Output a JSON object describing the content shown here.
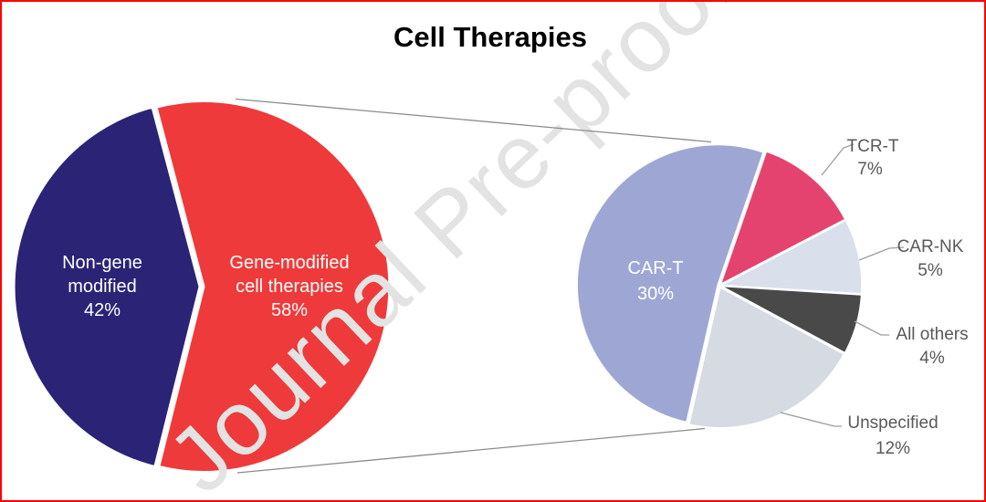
{
  "figure": {
    "title": "Cell Therapies",
    "watermark": "Journal Pre-proof",
    "frame_color": "#FF0000",
    "label_color": "#595959"
  },
  "chart_data": {
    "type": "pie",
    "title": "Cell Therapies",
    "layout_hint": "pie-of-pie: right pie is the breakdown of the 58% gene-modified slice, connected by projection lines",
    "pies": [
      {
        "name": "cell-therapies-overview",
        "slices": [
          {
            "label": "Non-gene modified",
            "slug": "non-gene-modified",
            "value": 42,
            "unit": "%",
            "color": "#2B2376",
            "lines": [
              "Non-gene",
              "modified",
              "42%"
            ]
          },
          {
            "label": "Gene-modified cell therapies",
            "slug": "gene-modified-cell-therapies",
            "value": 58,
            "unit": "%",
            "color": "#EE3A3A",
            "lines": [
              "Gene-modified",
              "cell therapies",
              "58%"
            ]
          }
        ]
      },
      {
        "name": "gene-modified-breakdown",
        "slices": [
          {
            "label": "TCR-T",
            "slug": "tcr-t",
            "value": 7,
            "unit": "%",
            "color": "#E5436F",
            "lines": [
              "TCR-T",
              "7%"
            ]
          },
          {
            "label": "CAR-NK",
            "slug": "car-nk",
            "value": 5,
            "unit": "%",
            "color": "#D9DFEB",
            "lines": [
              "CAR-NK",
              "5%"
            ]
          },
          {
            "label": "All others",
            "slug": "all-others",
            "value": 4,
            "unit": "%",
            "color": "#494949",
            "lines": [
              "All others",
              "4%"
            ]
          },
          {
            "label": "Unspecified",
            "slug": "unspecified",
            "value": 12,
            "unit": "%",
            "color": "#D5DAE3",
            "lines": [
              "Unspecified",
              "12%"
            ]
          },
          {
            "label": "CAR-T",
            "slug": "car-t",
            "value": 30,
            "unit": "%",
            "color": "#9EA7D4",
            "lines": [
              "CAR-T",
              "30%"
            ]
          }
        ]
      }
    ]
  }
}
